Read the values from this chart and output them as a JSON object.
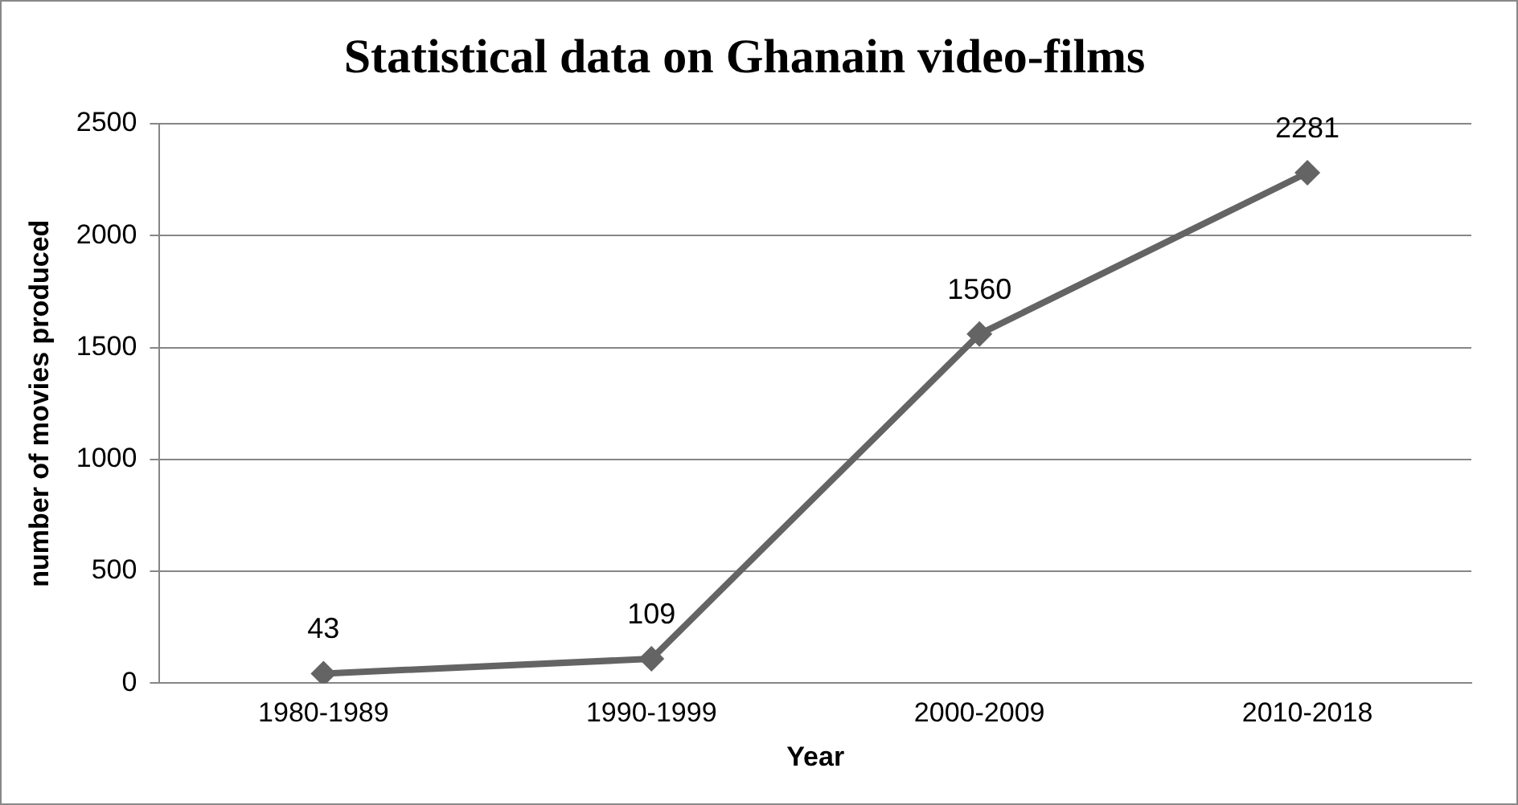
{
  "chart_data": {
    "type": "line",
    "title": "Statistical data on Ghanain video-films",
    "xlabel": "Year",
    "ylabel": "number of movies produced",
    "categories": [
      "1980-1989",
      "1990-1999",
      "2000-2009",
      "2010-2018"
    ],
    "series": [
      {
        "color": "#646464",
        "values": [
          43,
          109,
          1560,
          2281
        ]
      }
    ],
    "ylim": [
      0,
      2500
    ],
    "yticks": [
      0,
      500,
      1000,
      1500,
      2000,
      2500
    ],
    "grid": "y",
    "legend": false,
    "marker": "diamond",
    "line_style": "solid",
    "data_labels": true
  }
}
